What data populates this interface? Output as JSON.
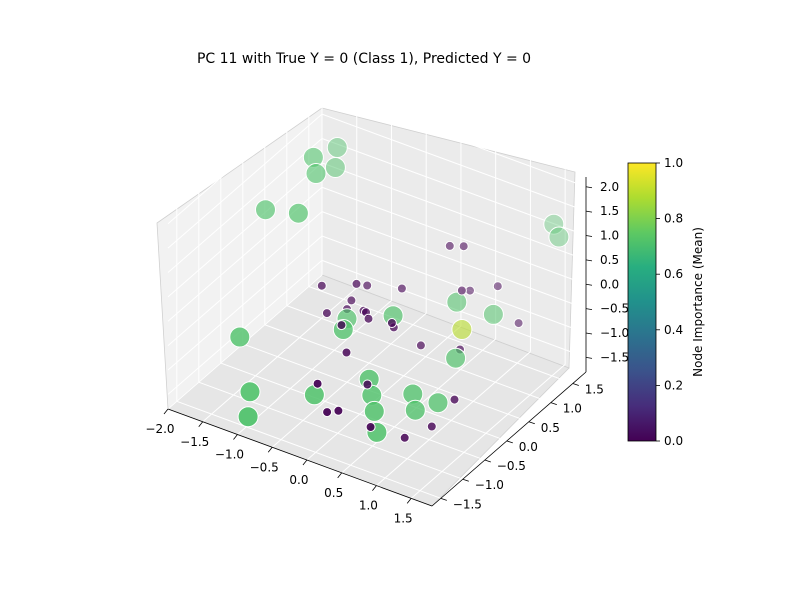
{
  "chart_data": {
    "type": "scatter",
    "title": "PC 11 with True Y = 0 (Class 1), Predicted Y = 0",
    "x_ticks": [
      "−2.0",
      "−1.5",
      "−1.0",
      "−0.5",
      "0.0",
      "0.5",
      "1.0",
      "1.5"
    ],
    "y_ticks": [
      "−1.5",
      "−1.0",
      "−0.5",
      "0.0",
      "0.5",
      "1.0",
      "1.5"
    ],
    "z_ticks": [
      "−1.5",
      "−1.0",
      "−0.5",
      "0.0",
      "0.5",
      "1.0",
      "1.5",
      "2.0"
    ],
    "xlim": [
      -2.0,
      1.8
    ],
    "ylim": [
      -1.7,
      1.8
    ],
    "zlim": [
      -1.8,
      2.2
    ],
    "grid": true,
    "colorbar": {
      "label": "Node Importance (Mean)",
      "ticks": [
        "0.0",
        "0.2",
        "0.4",
        "0.6",
        "0.8",
        "1.0"
      ],
      "range": [
        0.0,
        1.0
      ],
      "colormap": "viridis"
    },
    "points": [
      {
        "x": 0.0,
        "y": -0.3,
        "z": 0.0,
        "importance": 0.0
      },
      {
        "x": -0.1,
        "y": -0.2,
        "z": 0.0,
        "importance": 0.0
      },
      {
        "x": -0.2,
        "y": -0.1,
        "z": -0.1,
        "importance": 0.0
      },
      {
        "x": 0.3,
        "y": -0.2,
        "z": -0.1,
        "importance": 0.0
      },
      {
        "x": 0.1,
        "y": 0.3,
        "z": 0.2,
        "importance": 0.0
      },
      {
        "x": -0.5,
        "y": 0.1,
        "z": -0.2,
        "importance": 0.0
      },
      {
        "x": -0.6,
        "y": -0.3,
        "z": -0.2,
        "importance": 0.0
      },
      {
        "x": 0.6,
        "y": 0.6,
        "z": 1.1,
        "importance": 0.0
      },
      {
        "x": 0.8,
        "y": 0.6,
        "z": 1.2,
        "importance": 0.0
      },
      {
        "x": 0.7,
        "y": 0.9,
        "z": 0.0,
        "importance": 0.0
      },
      {
        "x": 1.1,
        "y": 0.9,
        "z": 0.3,
        "importance": 0.0
      },
      {
        "x": 1.4,
        "y": 0.9,
        "z": -0.3,
        "importance": 0.0
      },
      {
        "x": 0.0,
        "y": -0.8,
        "z": -0.3,
        "importance": 0.0
      },
      {
        "x": 0.3,
        "y": -0.8,
        "z": -0.8,
        "importance": 0.0
      },
      {
        "x": -0.1,
        "y": -1.3,
        "z": -0.6,
        "importance": 0.0
      },
      {
        "x": 0.2,
        "y": -1.3,
        "z": -1.0,
        "importance": 0.0
      },
      {
        "x": 0.1,
        "y": -1.4,
        "z": -1.0,
        "importance": 0.0
      },
      {
        "x": 0.6,
        "y": -1.2,
        "z": -1.2,
        "importance": 0.0
      },
      {
        "x": 0.9,
        "y": -0.9,
        "z": -1.5,
        "importance": 0.0
      },
      {
        "x": 1.1,
        "y": -0.6,
        "z": -1.4,
        "importance": 0.0
      },
      {
        "x": 1.3,
        "y": -0.4,
        "z": -0.9,
        "importance": 0.0
      },
      {
        "x": -0.4,
        "y": 0.3,
        "z": 0.0,
        "importance": 0.0
      },
      {
        "x": 0.4,
        "y": -0.4,
        "z": 0.2,
        "importance": 0.0
      },
      {
        "x": 1.0,
        "y": 0.2,
        "z": -0.5,
        "importance": 0.0
      },
      {
        "x": -0.3,
        "y": -0.1,
        "z": 0.4,
        "importance": 0.0
      },
      {
        "x": 0.9,
        "y": 0.4,
        "z": 0.5,
        "importance": 0.0
      },
      {
        "x": -0.5,
        "y": 0.0,
        "z": -0.3,
        "importance": 0.0
      },
      {
        "x": -0.2,
        "y": -0.6,
        "z": 0.0,
        "importance": 0.0
      },
      {
        "x": -0.8,
        "y": -0.1,
        "z": 0.1,
        "importance": 0.0
      },
      {
        "x": 0.5,
        "y": 0.1,
        "z": -0.6,
        "importance": 0.0
      },
      {
        "x": -1.3,
        "y": 0.5,
        "z": 2.0,
        "importance": 0.72
      },
      {
        "x": -1.2,
        "y": 0.4,
        "z": 1.8,
        "importance": 0.72
      },
      {
        "x": -1.8,
        "y": 0.2,
        "z": 0.9,
        "importance": 0.72
      },
      {
        "x": 1.4,
        "y": 1.7,
        "z": 1.1,
        "importance": 0.72
      },
      {
        "x": 1.6,
        "y": 1.5,
        "z": 1.1,
        "importance": 0.72
      },
      {
        "x": 0.7,
        "y": 0.6,
        "z": 0.0,
        "importance": 0.72
      },
      {
        "x": 0.1,
        "y": 0.1,
        "z": -0.2,
        "importance": 0.72
      },
      {
        "x": 0.9,
        "y": 0.4,
        "z": -0.3,
        "importance": 0.9
      },
      {
        "x": 1.1,
        "y": 0.8,
        "z": -0.2,
        "importance": 0.72
      },
      {
        "x": 1.0,
        "y": 0.1,
        "z": -0.6,
        "importance": 0.72
      },
      {
        "x": -0.3,
        "y": -0.4,
        "z": -0.3,
        "importance": 0.72
      },
      {
        "x": -0.5,
        "y": 0.0,
        "z": -0.5,
        "importance": 0.72
      },
      {
        "x": 0.2,
        "y": -0.6,
        "z": -0.9,
        "importance": 0.72
      },
      {
        "x": 0.3,
        "y": -0.7,
        "z": -1.1,
        "importance": 0.72
      },
      {
        "x": 0.7,
        "y": -0.4,
        "z": -1.1,
        "importance": 0.72
      },
      {
        "x": 0.8,
        "y": -0.5,
        "z": -1.3,
        "importance": 0.72
      },
      {
        "x": 1.0,
        "y": -0.3,
        "z": -1.2,
        "importance": 0.72
      },
      {
        "x": 0.4,
        "y": -0.8,
        "z": -1.3,
        "importance": 0.72
      },
      {
        "x": 0.5,
        "y": -0.9,
        "z": -1.6,
        "importance": 0.72
      },
      {
        "x": -0.4,
        "y": -0.9,
        "z": -1.3,
        "importance": 0.72
      },
      {
        "x": -1.2,
        "y": -1.1,
        "z": -1.5,
        "importance": 0.72
      },
      {
        "x": -1.1,
        "y": -1.3,
        "z": -1.8,
        "importance": 0.72
      },
      {
        "x": -1.6,
        "y": -0.7,
        "z": -0.9,
        "importance": 0.72
      },
      {
        "x": -1.2,
        "y": 0.0,
        "z": 1.3,
        "importance": 0.72
      },
      {
        "x": -1.3,
        "y": 1.0,
        "z": 1.4,
        "importance": 0.72
      },
      {
        "x": -1.4,
        "y": 1.2,
        "z": 1.6,
        "importance": 0.72
      }
    ],
    "faded_points_in_background": true
  }
}
